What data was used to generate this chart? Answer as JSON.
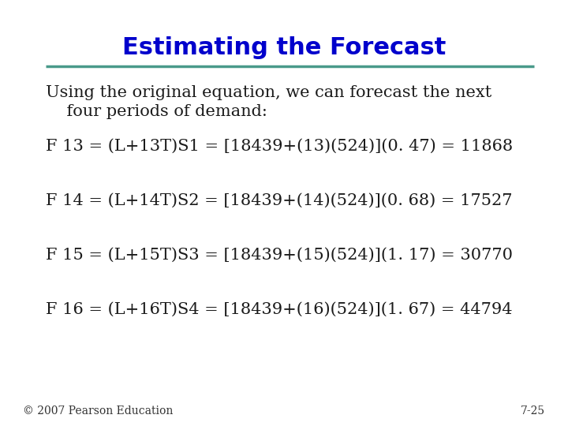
{
  "title": "Estimating the Forecast",
  "title_color": "#0000cc",
  "title_fontsize": 22,
  "title_bold": true,
  "line_color": "#4a9a8a",
  "background_color": "#ffffff",
  "intro_line1": "Using the original equation, we can forecast the next",
  "intro_line2": "    four periods of demand:",
  "intro_fontsize": 15,
  "intro_color": "#1a1a1a",
  "equations": [
    "F 13 = (L+13T)S1 = [18439+(13)(524)](0. 47) = 11868",
    "F 14 = (L+14T)S2 = [18439+(14)(524)](0. 68) = 17527",
    "F 15 = (L+15T)S3 = [18439+(15)(524)](1. 17) = 30770",
    "F 16 = (L+16T)S4 = [18439+(16)(524)](1. 67) = 44794"
  ],
  "eq_texts": [
    "F 13 = (L+13T)S1 = [18439+(13)(524)](0.47) = 11868",
    "F 14 = (L+14T)S2 = [18439+(14)(524)](0.68) = 17527",
    "F 15 = (L+15T)S3 = [18439+(15)(524)](1.17) = 30770",
    "F 16 = (L+16T)S4 = [18439+(16)(524)](1.67) = 44794"
  ],
  "eq_fontsize": 15,
  "eq_color": "#1a1a1a",
  "footer_left": "© 2007 Pearson Education",
  "footer_right": "7-25",
  "footer_fontsize": 10,
  "footer_color": "#333333"
}
